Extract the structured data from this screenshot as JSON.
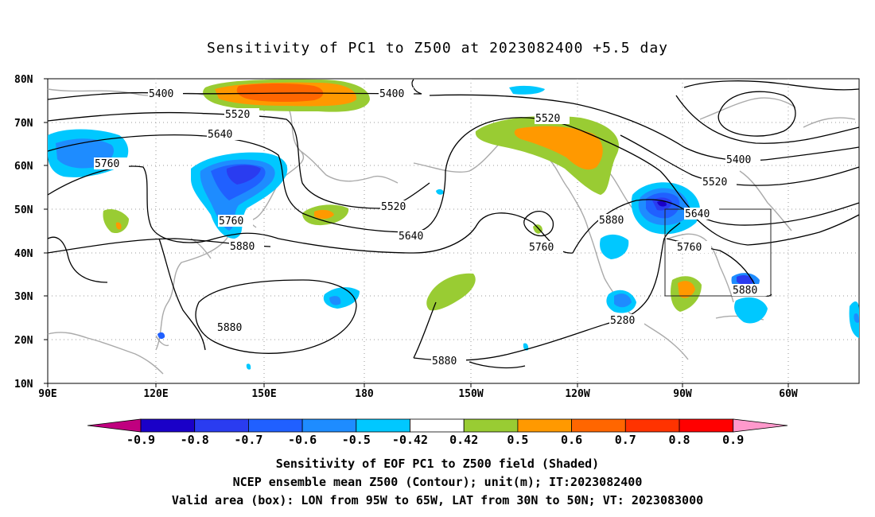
{
  "title": "Sensitivity of PC1 to Z500 at 2023082400 +5.5 day",
  "map": {
    "lat_labels": [
      "80N",
      "70N",
      "60N",
      "50N",
      "40N",
      "30N",
      "20N",
      "10N"
    ],
    "lon_labels": [
      "90E",
      "120E",
      "150E",
      "180",
      "150W",
      "120W",
      "90W",
      "60W"
    ],
    "contour_labels": [
      {
        "text": "5400",
        "id": "c5400a"
      },
      {
        "text": "5400",
        "id": "c5400b"
      },
      {
        "text": "5400",
        "id": "c5400c"
      },
      {
        "text": "5520",
        "id": "c5520a"
      },
      {
        "text": "5520",
        "id": "c5520b"
      },
      {
        "text": "5520",
        "id": "c5520c"
      },
      {
        "text": "5520",
        "id": "c5520d"
      },
      {
        "text": "5640",
        "id": "c5640a"
      },
      {
        "text": "5640",
        "id": "c5640b"
      },
      {
        "text": "5640",
        "id": "c5640c"
      },
      {
        "text": "5760",
        "id": "c5760a"
      },
      {
        "text": "5760",
        "id": "c5760b"
      },
      {
        "text": "5760",
        "id": "c5760c"
      },
      {
        "text": "5760",
        "id": "c5760d"
      },
      {
        "text": "5880",
        "id": "c5880a"
      },
      {
        "text": "5880",
        "id": "c5880b"
      },
      {
        "text": "5880",
        "id": "c5880c"
      },
      {
        "text": "5880",
        "id": "c5880d"
      },
      {
        "text": "5880",
        "id": "c5880e"
      },
      {
        "text": "5280",
        "id": "c5280a"
      }
    ],
    "valid_box": {
      "lon_from": "95W",
      "lon_to": "65W",
      "lat_from": "30N",
      "lat_to": "50N"
    }
  },
  "colorbar": {
    "labels": [
      "-0.9",
      "-0.8",
      "-0.7",
      "-0.6",
      "-0.5",
      "-0.42",
      "0.42",
      "0.5",
      "0.6",
      "0.7",
      "0.8",
      "0.9"
    ],
    "colors": [
      "#c0007f",
      "#1a00c8",
      "#2a3cf0",
      "#2060ff",
      "#1e8cff",
      "#00c8ff",
      "#ffffff",
      "#99cc33",
      "#ff9900",
      "#ff6600",
      "#ff3300",
      "#ff0000",
      "#ff99cc"
    ]
  },
  "captions": {
    "line1": "Sensitivity of EOF PC1 to Z500 field (Shaded)",
    "line2": "NCEP ensemble mean Z500 (Contour); unit(m); IT:2023082400",
    "line3": "Valid area (box): LON from 95W to 65W, LAT from 30N to 50N; VT: 2023083000"
  }
}
